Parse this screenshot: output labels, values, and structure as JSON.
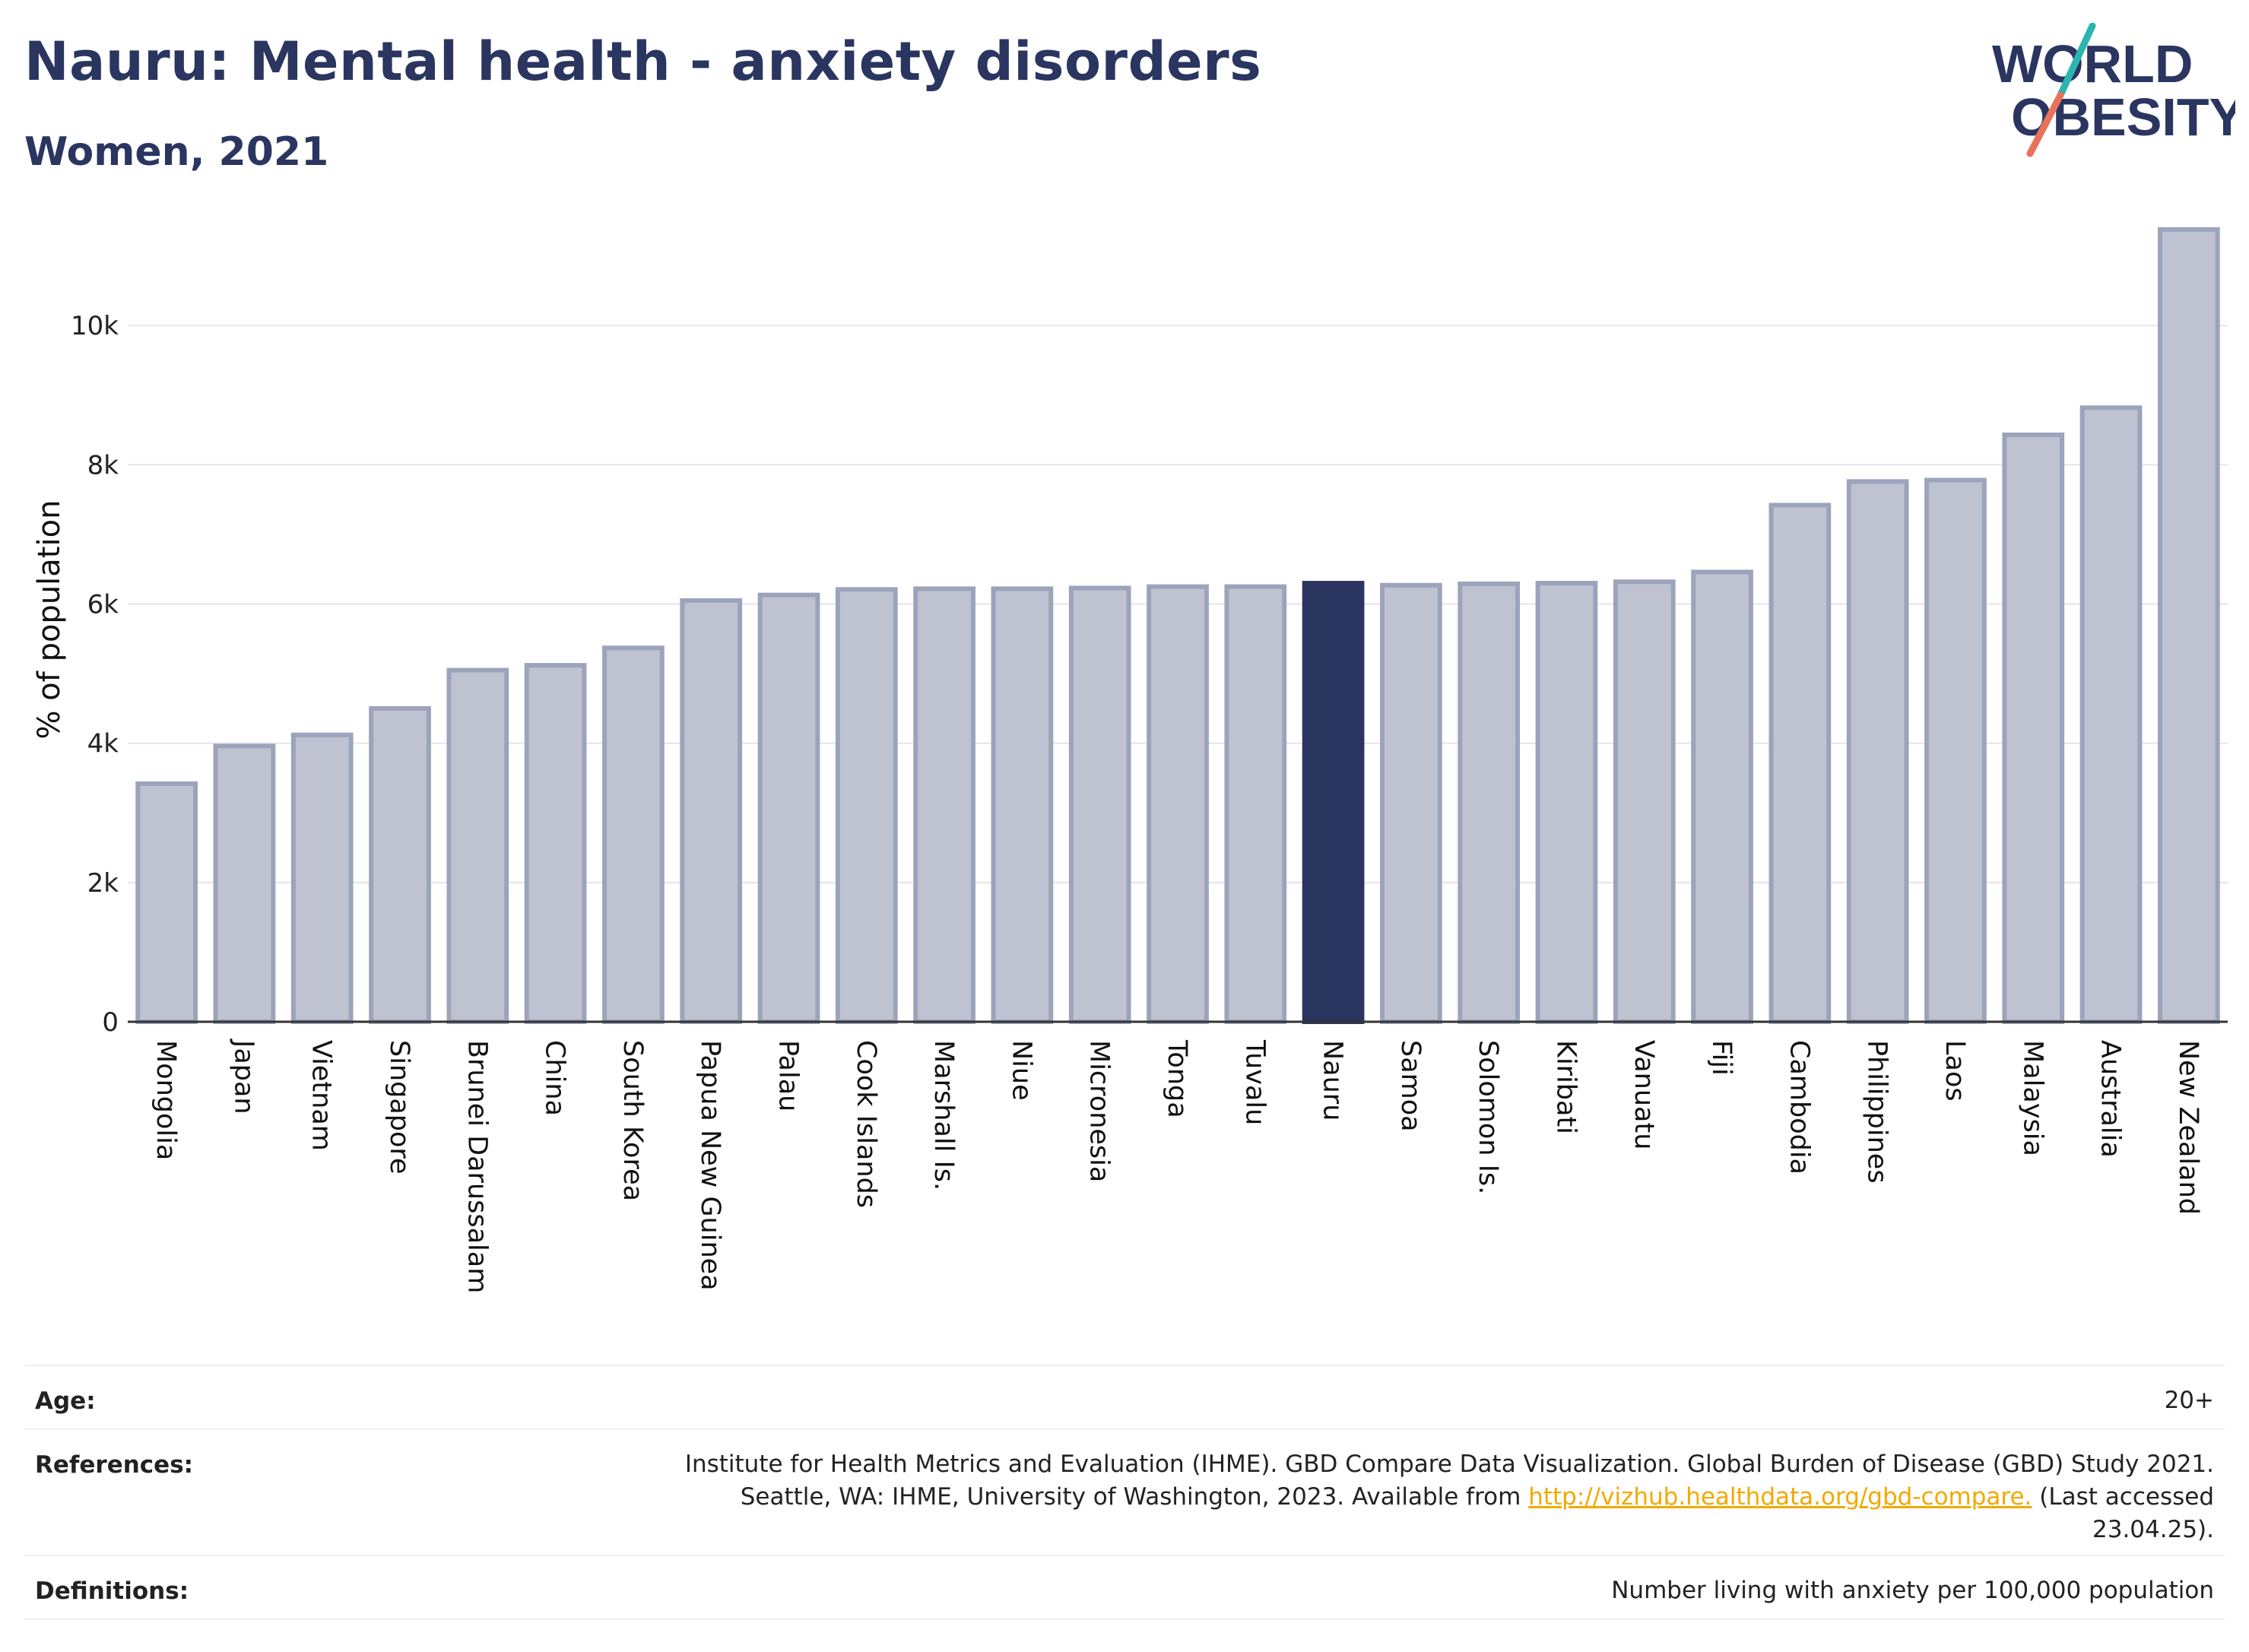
{
  "header": {
    "title": "Nauru: Mental health - anxiety disorders",
    "subtitle": "Women, 2021"
  },
  "logo": {
    "line1": "WORLD",
    "line2": "OBESITY",
    "brand_color": "#2a3560",
    "accent_teal": "#2bb5b0",
    "accent_coral": "#e8735a"
  },
  "colors": {
    "bar_default": "#bfc3d1",
    "bar_border": "#9ca3bb",
    "bar_highlight": "#2a3560"
  },
  "chart_data": {
    "type": "bar",
    "ylabel": "% of population",
    "ylim": [
      0,
      11400
    ],
    "yticks": [
      0,
      2000,
      4000,
      6000,
      8000,
      10000
    ],
    "ytick_labels": [
      "0",
      "2k",
      "4k",
      "6k",
      "8k",
      "10k"
    ],
    "grid": true,
    "highlight": "Nauru",
    "categories": [
      "Mongolia",
      "Japan",
      "Vietnam",
      "Singapore",
      "Brunei Darussalam",
      "China",
      "South Korea",
      "Papua New Guinea",
      "Palau",
      "Cook Islands",
      "Marshall Is.",
      "Niue",
      "Micronesia",
      "Tonga",
      "Tuvalu",
      "Nauru",
      "Samoa",
      "Solomon Is.",
      "Kiribati",
      "Vanuatu",
      "Fiji",
      "Cambodia",
      "Philippines",
      "Laos",
      "Malaysia",
      "Australia",
      "New Zealand"
    ],
    "values": [
      3420,
      3960,
      4120,
      4500,
      5050,
      5120,
      5370,
      6050,
      6130,
      6210,
      6220,
      6220,
      6230,
      6250,
      6250,
      6300,
      6270,
      6290,
      6300,
      6320,
      6460,
      7420,
      7760,
      7780,
      8430,
      8820,
      11380
    ]
  },
  "meta": {
    "age_label": "Age:",
    "age_value": "20+",
    "references_label": "References:",
    "references_line1": "Institute for Health Metrics and Evaluation (IHME). GBD Compare Data Visualization. Global Burden of Disease (GBD) Study 2021.",
    "references_line2_pre": "Seattle, WA: IHME, University of Washington, 2023. Available from",
    "references_link": "http://vizhub.healthdata.org/gbd-compare.",
    "references_line2_post": "(Last accessed",
    "references_line3": "23.04.25).",
    "definitions_label": "Definitions:",
    "definitions_value": "Number living with anxiety per 100,000 population"
  }
}
